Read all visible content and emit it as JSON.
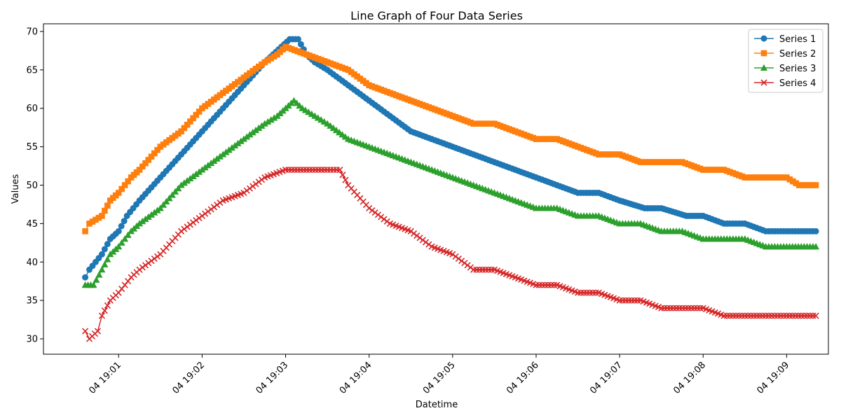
{
  "chart_data": {
    "type": "line",
    "title": "Line Graph of Four Data Series",
    "xlabel": "Datetime",
    "ylabel": "Values",
    "x_ticks": [
      "04 19:01",
      "04 19:02",
      "04 19:03",
      "04 19:04",
      "04 19:05",
      "04 19:06",
      "04 19:07",
      "04 19:08",
      "04 19:09"
    ],
    "y_ticks": [
      30,
      35,
      40,
      45,
      50,
      55,
      60,
      65,
      70
    ],
    "xlim_minutes": [
      0.1,
      9.5
    ],
    "ylim": [
      28,
      71
    ],
    "grid": false,
    "legend_position": "top-right",
    "x_unit": "minutes after 19:00",
    "series": [
      {
        "name": "Series 1",
        "color": "#1f77b4",
        "marker": "circle",
        "points": [
          [
            0.6,
            38
          ],
          [
            0.65,
            39
          ],
          [
            0.8,
            41
          ],
          [
            0.9,
            43
          ],
          [
            1.0,
            44
          ],
          [
            1.1,
            46
          ],
          [
            1.25,
            48
          ],
          [
            1.5,
            51
          ],
          [
            1.75,
            54
          ],
          [
            2.0,
            57
          ],
          [
            2.25,
            60
          ],
          [
            2.5,
            63
          ],
          [
            2.75,
            66
          ],
          [
            2.95,
            68
          ],
          [
            3.05,
            69
          ],
          [
            3.15,
            69
          ],
          [
            3.25,
            67
          ],
          [
            3.35,
            66
          ],
          [
            3.5,
            65
          ],
          [
            3.75,
            63
          ],
          [
            4.0,
            61
          ],
          [
            4.25,
            59
          ],
          [
            4.5,
            57
          ],
          [
            4.75,
            56
          ],
          [
            5.0,
            55
          ],
          [
            5.25,
            54
          ],
          [
            5.5,
            53
          ],
          [
            5.75,
            52
          ],
          [
            6.0,
            51
          ],
          [
            6.25,
            50
          ],
          [
            6.5,
            49
          ],
          [
            6.75,
            49
          ],
          [
            7.0,
            48
          ],
          [
            7.3,
            47
          ],
          [
            7.5,
            47
          ],
          [
            7.8,
            46
          ],
          [
            8.0,
            46
          ],
          [
            8.25,
            45
          ],
          [
            8.5,
            45
          ],
          [
            8.75,
            44
          ],
          [
            9.0,
            44
          ],
          [
            9.35,
            44
          ]
        ]
      },
      {
        "name": "Series 2",
        "color": "#ff7f0e",
        "marker": "square",
        "points": [
          [
            0.6,
            44
          ],
          [
            0.65,
            45
          ],
          [
            0.8,
            46
          ],
          [
            0.9,
            48
          ],
          [
            1.0,
            49
          ],
          [
            1.15,
            51
          ],
          [
            1.25,
            52
          ],
          [
            1.5,
            55
          ],
          [
            1.75,
            57
          ],
          [
            2.0,
            60
          ],
          [
            2.25,
            62
          ],
          [
            2.5,
            64
          ],
          [
            2.75,
            66
          ],
          [
            2.9,
            67
          ],
          [
            3.0,
            68
          ],
          [
            3.25,
            67
          ],
          [
            3.5,
            66
          ],
          [
            3.75,
            65
          ],
          [
            4.0,
            63
          ],
          [
            4.25,
            62
          ],
          [
            4.5,
            61
          ],
          [
            4.75,
            60
          ],
          [
            5.0,
            59
          ],
          [
            5.25,
            58
          ],
          [
            5.5,
            58
          ],
          [
            5.75,
            57
          ],
          [
            6.0,
            56
          ],
          [
            6.25,
            56
          ],
          [
            6.5,
            55
          ],
          [
            6.75,
            54
          ],
          [
            7.0,
            54
          ],
          [
            7.25,
            53
          ],
          [
            7.5,
            53
          ],
          [
            7.75,
            53
          ],
          [
            8.0,
            52
          ],
          [
            8.25,
            52
          ],
          [
            8.5,
            51
          ],
          [
            8.75,
            51
          ],
          [
            9.0,
            51
          ],
          [
            9.15,
            50
          ],
          [
            9.35,
            50
          ]
        ]
      },
      {
        "name": "Series 3",
        "color": "#2ca02c",
        "marker": "triangle",
        "points": [
          [
            0.6,
            37
          ],
          [
            0.7,
            37
          ],
          [
            0.8,
            39
          ],
          [
            0.9,
            41
          ],
          [
            1.0,
            42
          ],
          [
            1.15,
            44
          ],
          [
            1.25,
            45
          ],
          [
            1.5,
            47
          ],
          [
            1.75,
            50
          ],
          [
            2.0,
            52
          ],
          [
            2.25,
            54
          ],
          [
            2.5,
            56
          ],
          [
            2.75,
            58
          ],
          [
            2.9,
            59
          ],
          [
            3.0,
            60
          ],
          [
            3.1,
            61
          ],
          [
            3.2,
            60
          ],
          [
            3.35,
            59
          ],
          [
            3.5,
            58
          ],
          [
            3.75,
            56
          ],
          [
            4.0,
            55
          ],
          [
            4.25,
            54
          ],
          [
            4.5,
            53
          ],
          [
            4.75,
            52
          ],
          [
            5.0,
            51
          ],
          [
            5.25,
            50
          ],
          [
            5.5,
            49
          ],
          [
            5.75,
            48
          ],
          [
            6.0,
            47
          ],
          [
            6.25,
            47
          ],
          [
            6.5,
            46
          ],
          [
            6.75,
            46
          ],
          [
            7.0,
            45
          ],
          [
            7.25,
            45
          ],
          [
            7.5,
            44
          ],
          [
            7.75,
            44
          ],
          [
            8.0,
            43
          ],
          [
            8.25,
            43
          ],
          [
            8.5,
            43
          ],
          [
            8.75,
            42
          ],
          [
            9.0,
            42
          ],
          [
            9.35,
            42
          ]
        ]
      },
      {
        "name": "Series 4",
        "color": "#d62728",
        "marker": "x",
        "points": [
          [
            0.6,
            31
          ],
          [
            0.65,
            30
          ],
          [
            0.75,
            31
          ],
          [
            0.8,
            33
          ],
          [
            0.9,
            35
          ],
          [
            1.0,
            36
          ],
          [
            1.15,
            38
          ],
          [
            1.25,
            39
          ],
          [
            1.5,
            41
          ],
          [
            1.75,
            44
          ],
          [
            2.0,
            46
          ],
          [
            2.25,
            48
          ],
          [
            2.5,
            49
          ],
          [
            2.75,
            51
          ],
          [
            3.0,
            52
          ],
          [
            3.25,
            52
          ],
          [
            3.5,
            52
          ],
          [
            3.65,
            52
          ],
          [
            3.75,
            50
          ],
          [
            4.0,
            47
          ],
          [
            4.25,
            45
          ],
          [
            4.5,
            44
          ],
          [
            4.75,
            42
          ],
          [
            5.0,
            41
          ],
          [
            5.25,
            39
          ],
          [
            5.5,
            39
          ],
          [
            5.75,
            38
          ],
          [
            6.0,
            37
          ],
          [
            6.25,
            37
          ],
          [
            6.5,
            36
          ],
          [
            6.75,
            36
          ],
          [
            7.0,
            35
          ],
          [
            7.25,
            35
          ],
          [
            7.5,
            34
          ],
          [
            7.75,
            34
          ],
          [
            8.0,
            34
          ],
          [
            8.25,
            33
          ],
          [
            8.5,
            33
          ],
          [
            8.75,
            33
          ],
          [
            9.0,
            33
          ],
          [
            9.35,
            33
          ]
        ]
      }
    ]
  }
}
